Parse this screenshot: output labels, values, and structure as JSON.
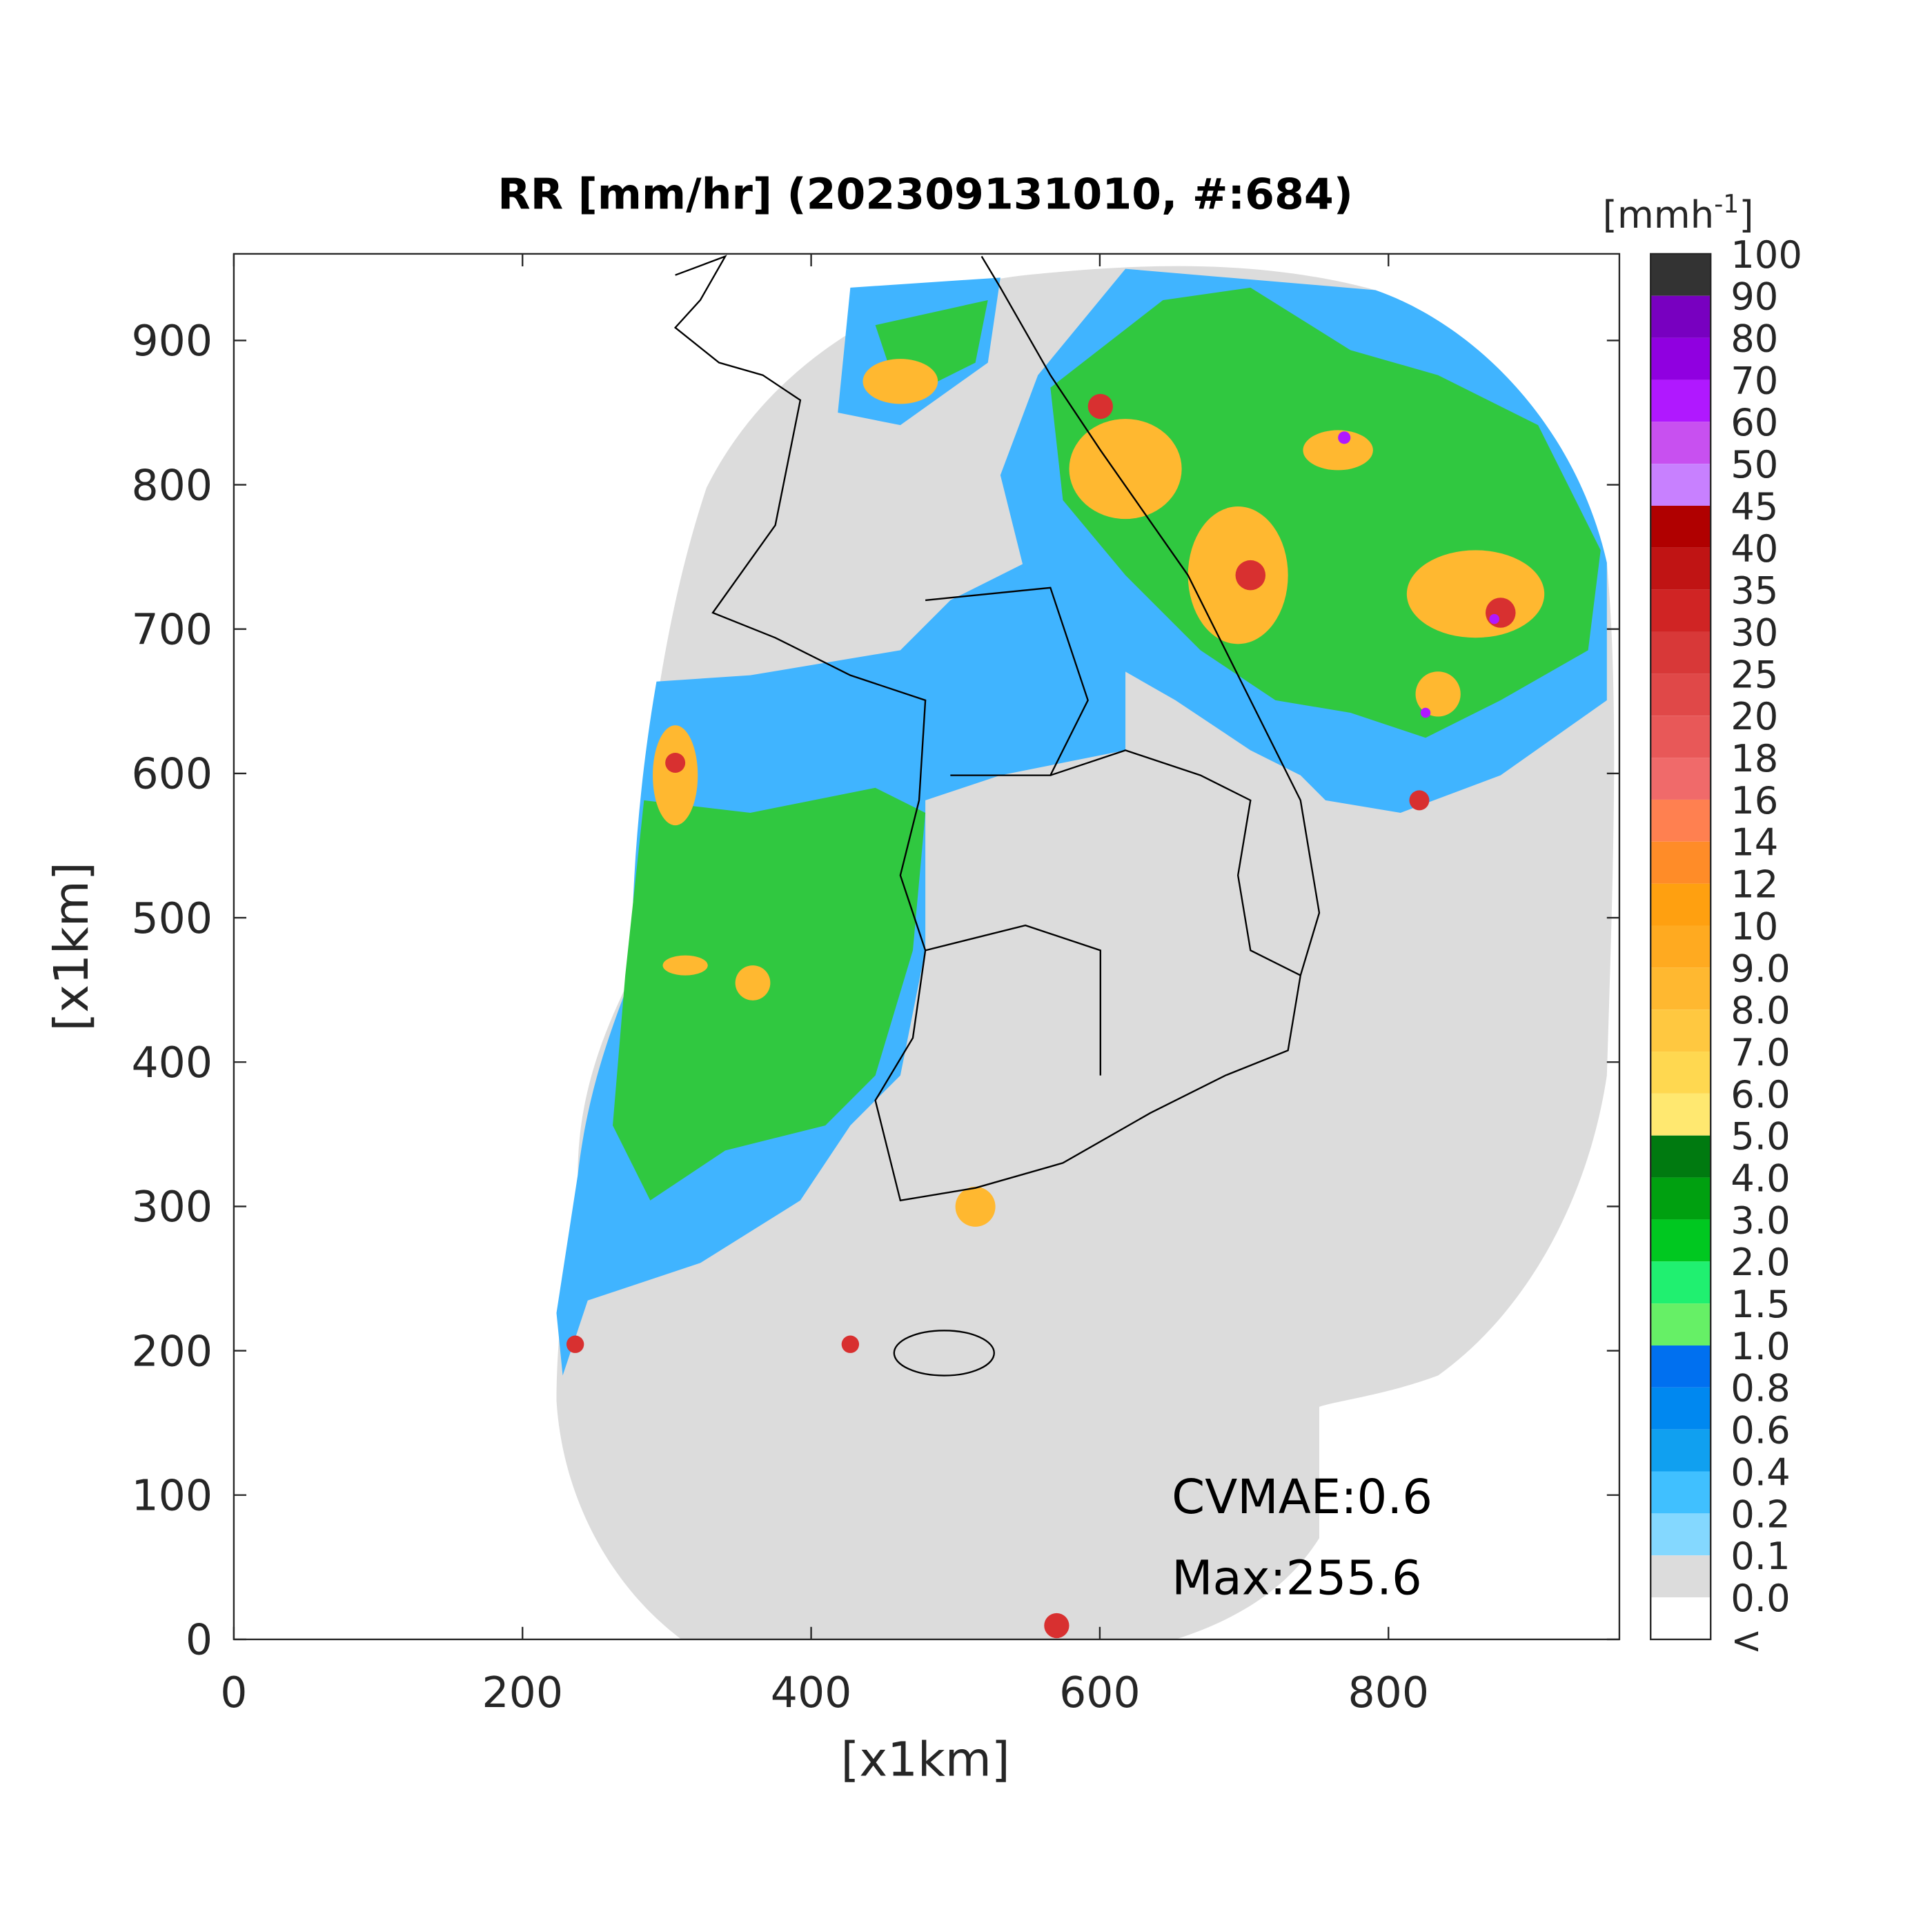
{
  "title": "RR [mm/hr] (202309131010, #:684)",
  "axes": {
    "xlabel": "[x1km]",
    "ylabel": "[x1km]",
    "xlim": [
      0,
      960
    ],
    "ylim": [
      0,
      960
    ],
    "xticks": [
      0,
      200,
      400,
      600,
      800
    ],
    "yticks": [
      0,
      100,
      200,
      300,
      400,
      500,
      600,
      700,
      800,
      900
    ]
  },
  "colorbar": {
    "unit": {
      "base": "[mmh",
      "sup": "-1",
      "end": "]"
    },
    "labels": [
      "100",
      "90",
      "80",
      "70",
      "60",
      "50",
      "45",
      "40",
      "35",
      "30",
      "25",
      "20",
      "18",
      "16",
      "14",
      "12",
      "10",
      "9.0",
      "8.0",
      "7.0",
      "6.0",
      "5.0",
      "4.0",
      "3.0",
      "2.0",
      "1.5",
      "1.0",
      "0.8",
      "0.6",
      "0.4",
      "0.2",
      "0.1",
      "0.0",
      "<"
    ],
    "colors": [
      "#333333",
      "#7800c0",
      "#9000e0",
      "#b018ff",
      "#c850f0",
      "#c880ff",
      "#b00000",
      "#c01414",
      "#d02424",
      "#d83838",
      "#e04848",
      "#e85858",
      "#f06a6a",
      "#ff8050",
      "#ff8c28",
      "#ffa010",
      "#ffaa20",
      "#ffb830",
      "#ffc840",
      "#ffd850",
      "#ffe870",
      "#007a10",
      "#00a010",
      "#00c820",
      "#20f070",
      "#66f066",
      "#0070f0",
      "#0088f0",
      "#10a0f0",
      "#40c0ff",
      "#84d8ff",
      "#dcdcdc",
      "#ffffff"
    ]
  },
  "annotations": [
    "CVMAE:0.6",
    "Max:255.6"
  ]
}
